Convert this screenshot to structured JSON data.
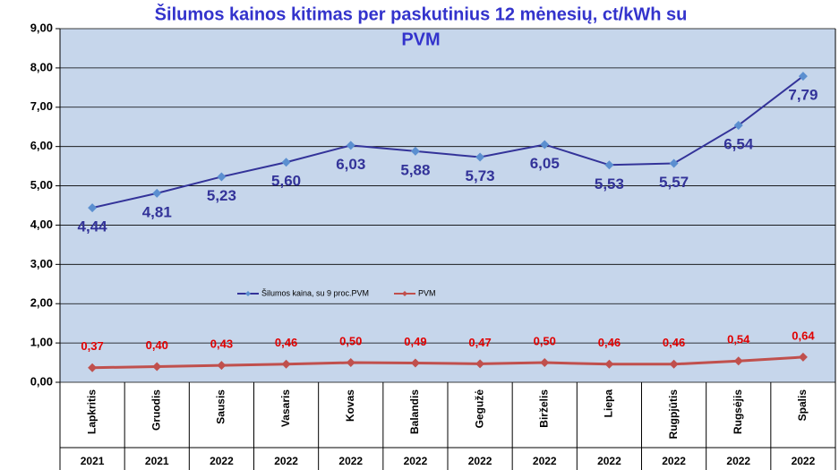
{
  "chart_data": {
    "type": "line",
    "title": [
      "Šilumos kainos kitimas per paskutinius 12 mėnesių, ct/kWh su",
      "PVM"
    ],
    "categories": [
      "Lapkritis",
      "Gruodis",
      "Sausis",
      "Vasaris",
      "Kovas",
      "Balandis",
      "Gegužė",
      "Birželis",
      "Liepa",
      "Rugpjūtis",
      "Rugsėjis",
      "Spalis"
    ],
    "category_years": [
      "2021",
      "2021",
      "2022",
      "2022",
      "2022",
      "2022",
      "2022",
      "2022",
      "2022",
      "2022",
      "2022",
      "2022"
    ],
    "series": [
      {
        "name": "Šilumos kaina, su 9 proc.PVM",
        "color": "#333399",
        "values": [
          4.44,
          4.81,
          5.23,
          5.6,
          6.03,
          5.88,
          5.73,
          6.05,
          5.53,
          5.57,
          6.54,
          7.79
        ],
        "value_labels": [
          "4,44",
          "4,81",
          "5,23",
          "5,60",
          "6,03",
          "5,88",
          "5,73",
          "6,05",
          "5,53",
          "5,57",
          "6,54",
          "7,79"
        ]
      },
      {
        "name": "PVM",
        "color": "#c0504d",
        "values": [
          0.37,
          0.4,
          0.43,
          0.46,
          0.5,
          0.49,
          0.47,
          0.5,
          0.46,
          0.46,
          0.54,
          0.64
        ],
        "value_labels": [
          "0,37",
          "0,40",
          "0,43",
          "0,46",
          "0,50",
          "0,49",
          "0,47",
          "0,50",
          "0,46",
          "0,46",
          "0,54",
          "0,64"
        ]
      }
    ],
    "ylim": [
      0,
      9
    ],
    "yticks": [
      {
        "value": 0,
        "label": "0,00"
      },
      {
        "value": 1,
        "label": "1,00"
      },
      {
        "value": 2,
        "label": "2,00"
      },
      {
        "value": 3,
        "label": "3,00"
      },
      {
        "value": 4,
        "label": "4,00"
      },
      {
        "value": 5,
        "label": "5,00"
      },
      {
        "value": 6,
        "label": "6,00"
      },
      {
        "value": 7,
        "label": "7,00"
      },
      {
        "value": 8,
        "label": "8,00"
      },
      {
        "value": 9,
        "label": "9,00"
      }
    ],
    "grid": true
  }
}
